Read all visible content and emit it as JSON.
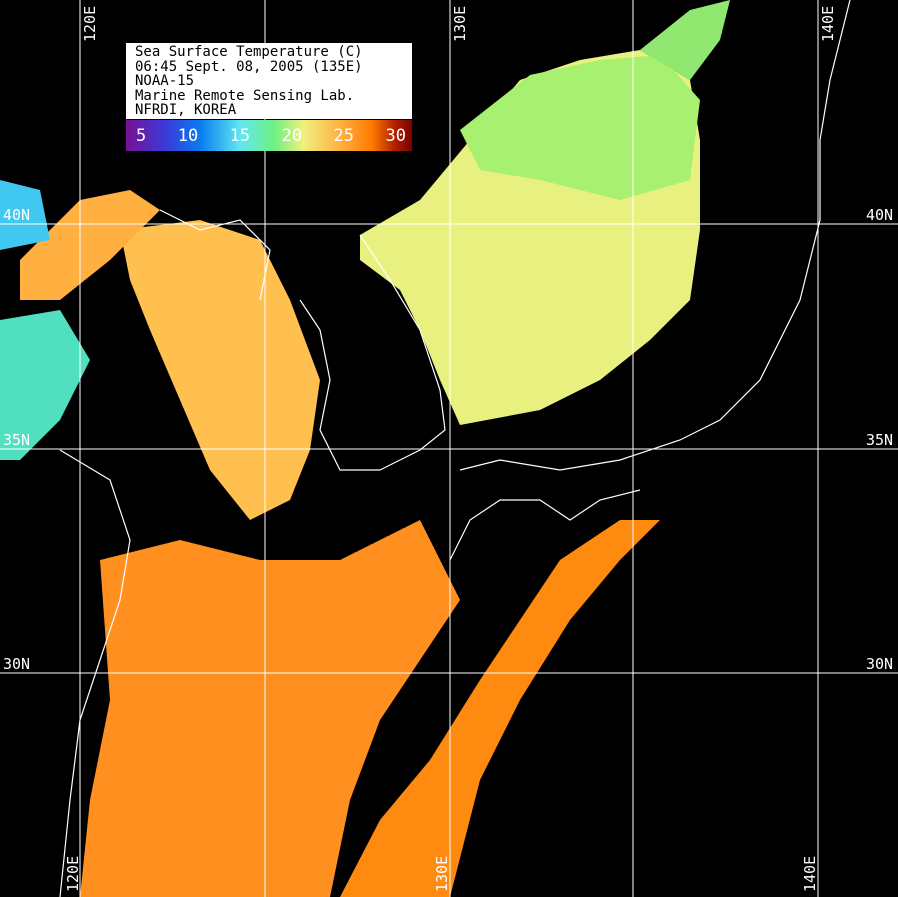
{
  "legend": {
    "lines": [
      "Sea Surface Temperature (C)",
      "06:45 Sept. 08, 2005 (135E)",
      "NOAA-15",
      "Marine Remote Sensing Lab.",
      "NFRDI, KOREA"
    ],
    "colorbar_ticks": [
      "5",
      "10",
      "15",
      "20",
      "25",
      "30"
    ],
    "colorbar_colors": [
      "#7a1095",
      "#0a7cf0",
      "#60e8f0",
      "#70f080",
      "#f0f080",
      "#ffb040",
      "#ff7a00",
      "#7a0000"
    ]
  },
  "grid": {
    "longitude_labels_top": [
      "120E",
      "130E",
      "140E"
    ],
    "longitude_labels_bottom": [
      "120E",
      "130E",
      "140E"
    ],
    "latitude_labels_left": [
      "40N",
      "35N",
      "30N"
    ],
    "latitude_labels_right": [
      "40N",
      "35N",
      "30N"
    ]
  },
  "colors": {
    "background": "#000000",
    "coastline": "#ffffff",
    "grid": "#ffffff"
  }
}
